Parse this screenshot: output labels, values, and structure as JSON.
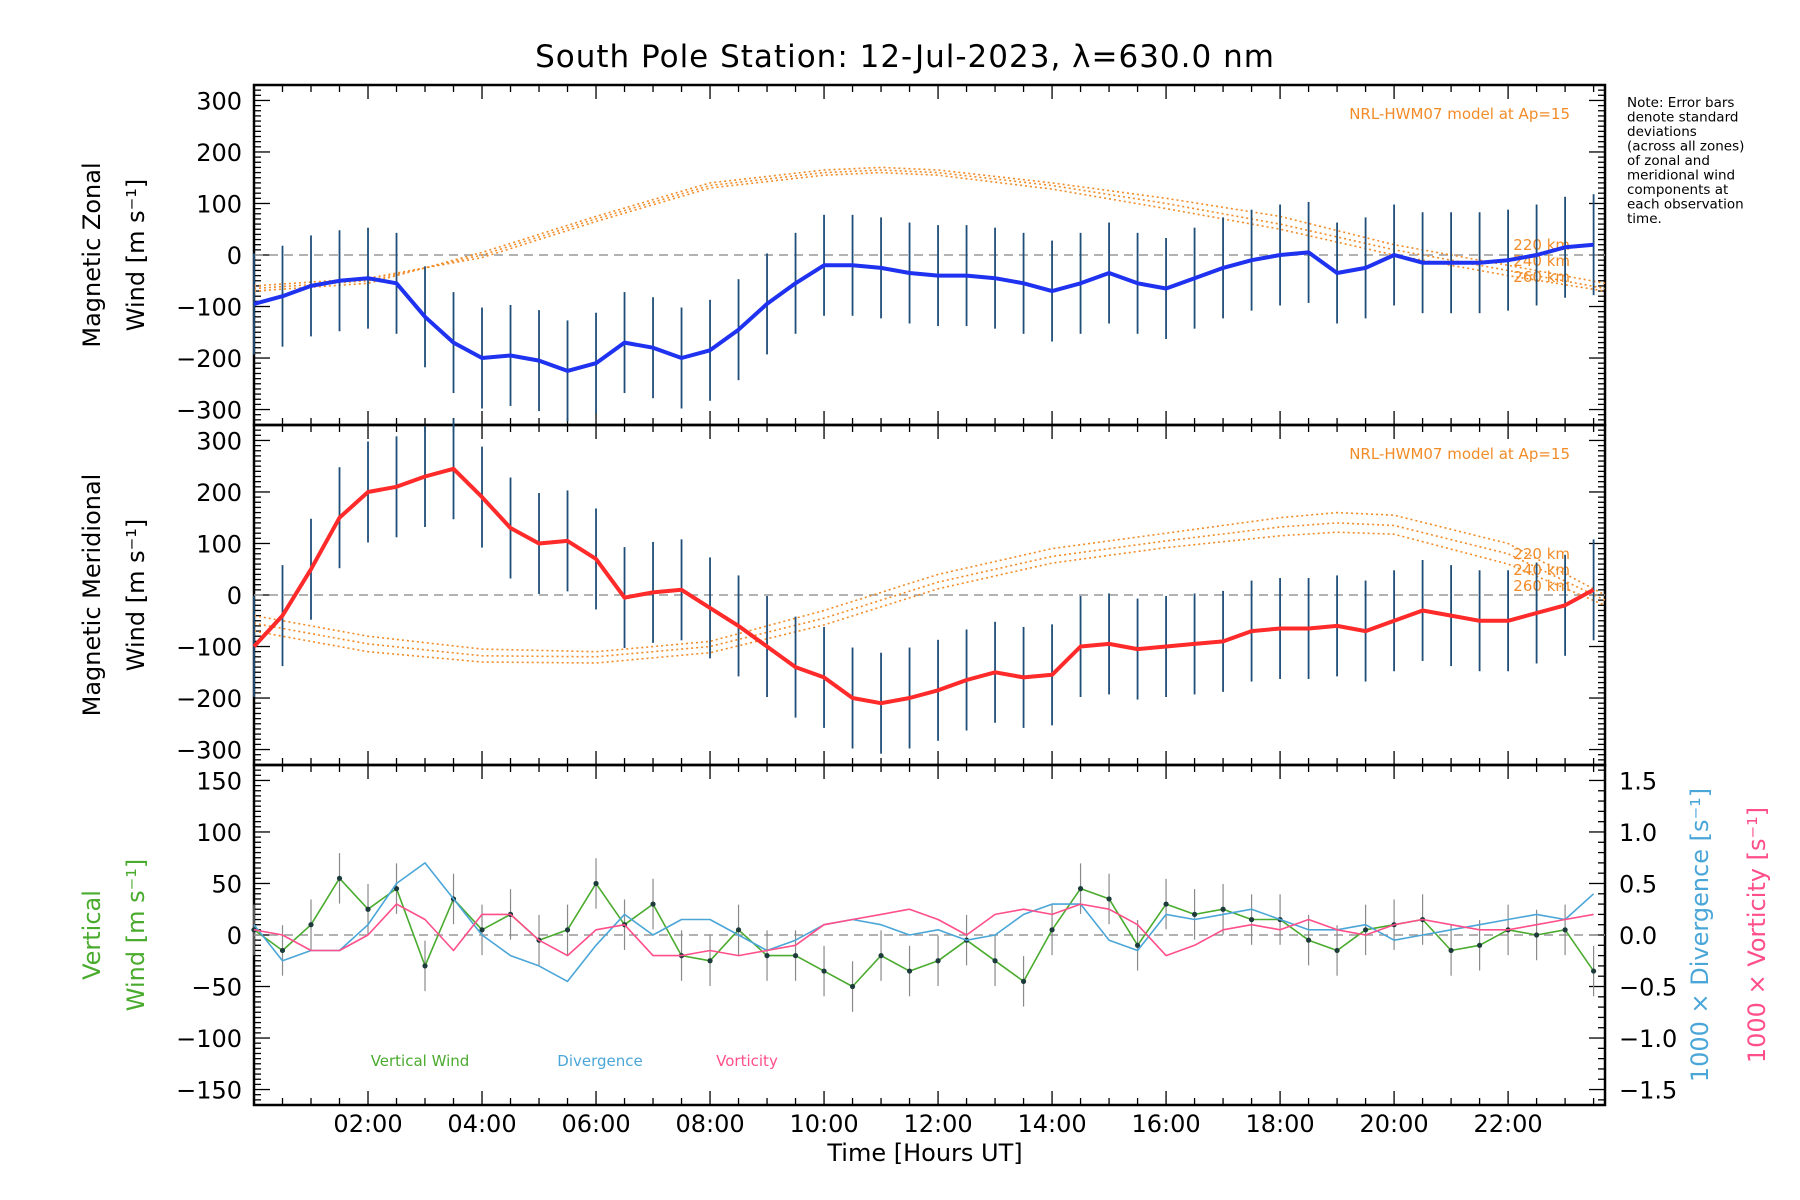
{
  "page": {
    "title": "South Pole Station: 12-Jul-2023, λ=630.0 nm"
  },
  "note_lines": [
    "Note: Error bars",
    "denote standard",
    "deviations",
    "(across all zones)",
    "of zonal and",
    "meridional wind",
    "components at",
    "each observation",
    "time."
  ],
  "colors": {
    "zonal_line": "#1e32f0",
    "meridional_line": "#ff2a2a",
    "vertical_line": "#4aab2e",
    "divergence_line": "#4ba6d8",
    "vorticity_line": "#ff4f8b",
    "model": "#f28c28",
    "zero_line": "#999999",
    "error_bar": "#1f4e79"
  },
  "chart_data": [
    {
      "type": "line",
      "panel": "zonal",
      "ylabel_lines": [
        "Magnetic Zonal",
        "Wind [m s⁻¹]"
      ],
      "ylim": [
        -330,
        330
      ],
      "yticks": [
        -300,
        -200,
        -100,
        0,
        100,
        200,
        300
      ],
      "model_label": "NRL-HWM07 model at Ap=15",
      "model_alt_labels": [
        "220 km",
        "240 km",
        "260 km"
      ],
      "series": [
        {
          "name": "Magnetic Zonal Wind",
          "x": [
            0.0,
            0.5,
            1.0,
            1.5,
            2.0,
            2.5,
            3.0,
            3.5,
            4.0,
            4.5,
            5.0,
            5.5,
            6.0,
            6.5,
            7.0,
            7.5,
            8.0,
            8.5,
            9.0,
            9.5,
            10.0,
            10.5,
            11.0,
            11.5,
            12.0,
            12.5,
            13.0,
            13.5,
            14.0,
            14.5,
            15.0,
            15.5,
            16.0,
            16.5,
            17.0,
            17.5,
            18.0,
            18.5,
            19.0,
            19.5,
            20.0,
            20.5,
            21.0,
            21.5,
            22.0,
            22.5,
            23.0,
            23.5
          ],
          "values": [
            -95,
            -80,
            -60,
            -50,
            -45,
            -55,
            -120,
            -170,
            -200,
            -195,
            -205,
            -225,
            -210,
            -170,
            -180,
            -200,
            -185,
            -145,
            -95,
            -55,
            -20,
            -20,
            -25,
            -35,
            -40,
            -40,
            -45,
            -55,
            -70,
            -55,
            -35,
            -55,
            -65,
            -45,
            -25,
            -10,
            0,
            5,
            -35,
            -25,
            0,
            -15,
            -15,
            -15,
            -10,
            0,
            15,
            20
          ]
        }
      ],
      "model_curves": [
        {
          "name": "220 km",
          "x": [
            0,
            2,
            4,
            6,
            8,
            10,
            11,
            12,
            14,
            16,
            18,
            20,
            22,
            23.7
          ],
          "values": [
            -70,
            -55,
            5,
            75,
            140,
            165,
            170,
            165,
            140,
            110,
            75,
            20,
            -20,
            -55
          ]
        },
        {
          "name": "240 km",
          "x": [
            0,
            2,
            4,
            6,
            8,
            10,
            11,
            12,
            14,
            16,
            18,
            20,
            22,
            23.7
          ],
          "values": [
            -65,
            -50,
            0,
            70,
            135,
            160,
            165,
            160,
            135,
            100,
            60,
            10,
            -30,
            -65
          ]
        },
        {
          "name": "260 km",
          "x": [
            0,
            2,
            4,
            6,
            8,
            10,
            11,
            12,
            14,
            16,
            18,
            20,
            22,
            23.7
          ],
          "values": [
            -60,
            -45,
            -5,
            65,
            130,
            155,
            160,
            155,
            128,
            90,
            50,
            0,
            -40,
            -70
          ]
        }
      ]
    },
    {
      "type": "line",
      "panel": "meridional",
      "ylabel_lines": [
        "Magnetic Meridional",
        "Wind [m s⁻¹]"
      ],
      "ylim": [
        -330,
        330
      ],
      "yticks": [
        -300,
        -200,
        -100,
        0,
        100,
        200,
        300
      ],
      "model_label": "NRL-HWM07 model at Ap=15",
      "model_alt_labels": [
        "220 km",
        "240 km",
        "260 km"
      ],
      "series": [
        {
          "name": "Magnetic Meridional Wind",
          "x": [
            0.0,
            0.5,
            1.0,
            1.5,
            2.0,
            2.5,
            3.0,
            3.5,
            4.0,
            4.5,
            5.0,
            5.5,
            6.0,
            6.5,
            7.0,
            7.5,
            8.0,
            8.5,
            9.0,
            9.5,
            10.0,
            10.5,
            11.0,
            11.5,
            12.0,
            12.5,
            13.0,
            13.5,
            14.0,
            14.5,
            15.0,
            15.5,
            16.0,
            16.5,
            17.0,
            17.5,
            18.0,
            18.5,
            19.0,
            19.5,
            20.0,
            20.5,
            21.0,
            21.5,
            22.0,
            22.5,
            23.0,
            23.5
          ],
          "values": [
            -100,
            -40,
            50,
            150,
            200,
            210,
            230,
            245,
            190,
            130,
            100,
            105,
            70,
            -5,
            5,
            10,
            -25,
            -60,
            -100,
            -140,
            -160,
            -200,
            -210,
            -200,
            -185,
            -165,
            -150,
            -160,
            -155,
            -100,
            -95,
            -105,
            -100,
            -95,
            -90,
            -70,
            -65,
            -65,
            -60,
            -70,
            -50,
            -30,
            -40,
            -50,
            -50,
            -35,
            -20,
            10
          ]
        }
      ],
      "model_curves": [
        {
          "name": "220 km",
          "x": [
            0,
            2,
            4,
            6,
            8,
            10,
            12,
            14,
            16,
            18,
            19,
            20,
            22,
            23.7
          ],
          "values": [
            -40,
            -80,
            -105,
            -110,
            -90,
            -30,
            40,
            90,
            120,
            150,
            160,
            155,
            100,
            0
          ]
        },
        {
          "name": "240 km",
          "x": [
            0,
            2,
            4,
            6,
            8,
            10,
            12,
            14,
            16,
            18,
            19,
            20,
            22,
            23.7
          ],
          "values": [
            -55,
            -95,
            -118,
            -120,
            -100,
            -45,
            25,
            75,
            105,
            132,
            140,
            135,
            80,
            -10
          ]
        },
        {
          "name": "260 km",
          "x": [
            0,
            2,
            4,
            6,
            8,
            10,
            12,
            14,
            16,
            18,
            19,
            20,
            22,
            23.7
          ],
          "values": [
            -70,
            -110,
            -130,
            -132,
            -112,
            -58,
            12,
            62,
            92,
            115,
            122,
            118,
            60,
            -20
          ]
        }
      ]
    },
    {
      "type": "line",
      "panel": "vertical",
      "ylabel_lines": [
        "Vertical",
        "Wind [m s⁻¹]"
      ],
      "ylim": [
        -165,
        165
      ],
      "yticks": [
        -150,
        -100,
        -50,
        0,
        50,
        100,
        150
      ],
      "right_axis": {
        "label_divergence": "1000 × Divergence [s⁻¹]",
        "label_vorticity": "1000 × Vorticity [s⁻¹]",
        "ylim": [
          -1.65,
          1.65
        ],
        "yticks": [
          -1.5,
          -1.0,
          -0.5,
          0.0,
          0.5,
          1.0,
          1.5
        ],
        "tick_labels": [
          "−1.5",
          "−1.0",
          "−0.5",
          "0.0",
          "0.5",
          "1.0",
          "1.5"
        ]
      },
      "legend": [
        "Vertical Wind",
        "Divergence",
        "Vorticity"
      ],
      "series": [
        {
          "name": "Vertical Wind",
          "x": [
            0.0,
            0.5,
            1.0,
            1.5,
            2.0,
            2.5,
            3.0,
            3.5,
            4.0,
            4.5,
            5.0,
            5.5,
            6.0,
            6.5,
            7.0,
            7.5,
            8.0,
            8.5,
            9.0,
            9.5,
            10.0,
            10.5,
            11.0,
            11.5,
            12.0,
            12.5,
            13.0,
            13.5,
            14.0,
            14.5,
            15.0,
            15.5,
            16.0,
            16.5,
            17.0,
            17.5,
            18.0,
            18.5,
            19.0,
            19.5,
            20.0,
            20.5,
            21.0,
            21.5,
            22.0,
            22.5,
            23.0,
            23.5
          ],
          "values": [
            5,
            -15,
            10,
            55,
            25,
            45,
            -30,
            35,
            5,
            20,
            -5,
            5,
            50,
            10,
            30,
            -20,
            -25,
            5,
            -20,
            -20,
            -35,
            -50,
            -20,
            -35,
            -25,
            -5,
            -25,
            -45,
            5,
            45,
            35,
            -10,
            30,
            20,
            25,
            15,
            15,
            -5,
            -15,
            5,
            10,
            15,
            -15,
            -10,
            5,
            0,
            5,
            -35
          ]
        },
        {
          "name": "Divergence",
          "axis": "right",
          "x": [
            0.0,
            0.5,
            1.0,
            1.5,
            2.0,
            2.5,
            3.0,
            3.5,
            4.0,
            4.5,
            5.0,
            5.5,
            6.0,
            6.5,
            7.0,
            7.5,
            8.0,
            8.5,
            9.0,
            9.5,
            10.0,
            10.5,
            11.0,
            11.5,
            12.0,
            12.5,
            13.0,
            13.5,
            14.0,
            14.5,
            15.0,
            15.5,
            16.0,
            16.5,
            17.0,
            17.5,
            18.0,
            18.5,
            19.0,
            19.5,
            20.0,
            20.5,
            21.0,
            21.5,
            22.0,
            22.5,
            23.0,
            23.5
          ],
          "values": [
            0.1,
            -0.25,
            -0.15,
            -0.15,
            0.1,
            0.5,
            0.7,
            0.35,
            0.0,
            -0.2,
            -0.3,
            -0.45,
            -0.1,
            0.2,
            0.0,
            0.15,
            0.15,
            0.0,
            -0.15,
            -0.05,
            0.1,
            0.15,
            0.1,
            0.0,
            0.05,
            -0.05,
            0.0,
            0.2,
            0.3,
            0.3,
            -0.05,
            -0.15,
            0.2,
            0.15,
            0.2,
            0.25,
            0.15,
            0.05,
            0.05,
            0.1,
            -0.05,
            0.0,
            0.05,
            0.1,
            0.15,
            0.2,
            0.15,
            0.4
          ]
        },
        {
          "name": "Vorticity",
          "axis": "right",
          "x": [
            0.0,
            0.5,
            1.0,
            1.5,
            2.0,
            2.5,
            3.0,
            3.5,
            4.0,
            4.5,
            5.0,
            5.5,
            6.0,
            6.5,
            7.0,
            7.5,
            8.0,
            8.5,
            9.0,
            9.5,
            10.0,
            10.5,
            11.0,
            11.5,
            12.0,
            12.5,
            13.0,
            13.5,
            14.0,
            14.5,
            15.0,
            15.5,
            16.0,
            16.5,
            17.0,
            17.5,
            18.0,
            18.5,
            19.0,
            19.5,
            20.0,
            20.5,
            21.0,
            21.5,
            22.0,
            22.5,
            23.0,
            23.5
          ],
          "values": [
            0.05,
            0.0,
            -0.15,
            -0.15,
            0.0,
            0.3,
            0.15,
            -0.15,
            0.2,
            0.2,
            -0.05,
            -0.2,
            0.05,
            0.1,
            -0.2,
            -0.2,
            -0.15,
            -0.2,
            -0.15,
            -0.1,
            0.1,
            0.15,
            0.2,
            0.25,
            0.15,
            0.0,
            0.2,
            0.25,
            0.2,
            0.3,
            0.25,
            0.1,
            -0.2,
            -0.1,
            0.05,
            0.1,
            0.05,
            0.15,
            0.05,
            0.0,
            0.1,
            0.15,
            0.1,
            0.05,
            0.05,
            0.1,
            0.15,
            0.2
          ]
        }
      ]
    }
  ],
  "xaxis": {
    "label": "Time [Hours UT]",
    "xlim": [
      0,
      23.7
    ],
    "major_ticks": [
      2,
      4,
      6,
      8,
      10,
      12,
      14,
      16,
      18,
      20,
      22
    ],
    "tick_labels": [
      "02:00",
      "04:00",
      "06:00",
      "08:00",
      "10:00",
      "12:00",
      "14:00",
      "16:00",
      "18:00",
      "20:00",
      "22:00"
    ]
  }
}
